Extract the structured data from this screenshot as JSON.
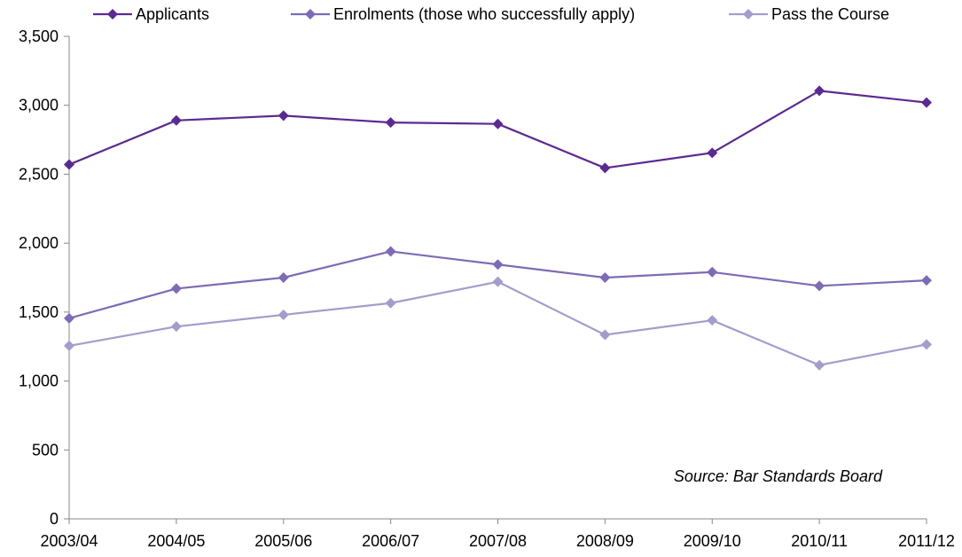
{
  "chart_data": {
    "type": "line",
    "title": "",
    "xlabel": "",
    "ylabel": "",
    "categories": [
      "2003/04",
      "2004/05",
      "2005/06",
      "2006/07",
      "2007/08",
      "2008/09",
      "2009/10",
      "2010/11",
      "2011/12"
    ],
    "ylim": [
      0,
      3500
    ],
    "yticks": [
      0,
      500,
      1000,
      1500,
      2000,
      2500,
      3000,
      3500
    ],
    "ytick_labels": [
      "0",
      "500",
      "1,000",
      "1,500",
      "2,000",
      "2,500",
      "3,000",
      "3,500"
    ],
    "grid": false,
    "legend_position": "top",
    "marker": "diamond",
    "series": [
      {
        "name": "Applicants",
        "color": "#5b2a91",
        "values": [
          2570,
          2890,
          2925,
          2875,
          2865,
          2545,
          2655,
          3105,
          3020
        ]
      },
      {
        "name": "Enrolments (those who successfully apply)",
        "color": "#7d6bb5",
        "values": [
          1455,
          1670,
          1750,
          1940,
          1845,
          1750,
          1790,
          1690,
          1730
        ]
      },
      {
        "name": "Pass the Course",
        "color": "#a39dcc",
        "values": [
          1255,
          1395,
          1480,
          1565,
          1720,
          1335,
          1440,
          1115,
          1265
        ]
      }
    ],
    "annotation": "Source: Bar Standards Board"
  }
}
